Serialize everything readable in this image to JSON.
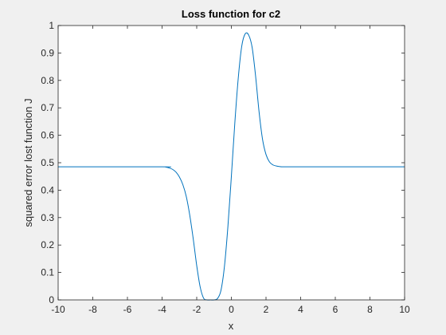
{
  "chart_data": {
    "type": "line",
    "title": "Loss function for c2",
    "xlabel": "x",
    "ylabel": "squared error lost function J",
    "xlim": [
      -10,
      10
    ],
    "ylim": [
      0,
      1
    ],
    "xticks": [
      "-10",
      "-8",
      "-6",
      "-4",
      "-2",
      "0",
      "2",
      "4",
      "6",
      "8",
      "10"
    ],
    "yticks": [
      "0",
      "0.1",
      "0.2",
      "0.3",
      "0.4",
      "0.5",
      "0.6",
      "0.7",
      "0.8",
      "0.9",
      "1"
    ],
    "grid": false,
    "series": [
      {
        "color": "#0072bd",
        "x": [
          -10,
          -4.0,
          -3.8,
          -3.6,
          -3.4,
          -3.2,
          -3.0,
          -2.8,
          -2.6,
          -2.4,
          -2.2,
          -2.0,
          -1.8,
          -1.6,
          -1.4,
          -1.2,
          -1.0,
          -0.8,
          -0.6,
          -0.4,
          -0.2,
          0.0,
          0.2,
          0.4,
          0.6,
          0.8,
          1.0,
          1.2,
          1.4,
          1.6,
          1.8,
          2.0,
          2.2,
          2.4,
          2.6,
          2.8,
          3.0,
          3.2,
          3.4,
          10
        ],
        "y": [
          0.485,
          0.485,
          0.484,
          0.481,
          0.476,
          0.466,
          0.448,
          0.42,
          0.376,
          0.308,
          0.222,
          0.125,
          0.047,
          0.006,
          0.0,
          0.0,
          0.0,
          0.005,
          0.035,
          0.122,
          0.267,
          0.45,
          0.645,
          0.81,
          0.925,
          0.97,
          0.965,
          0.92,
          0.815,
          0.685,
          0.585,
          0.53,
          0.503,
          0.492,
          0.488,
          0.486,
          0.485,
          0.485,
          0.485,
          0.485
        ]
      }
    ]
  }
}
